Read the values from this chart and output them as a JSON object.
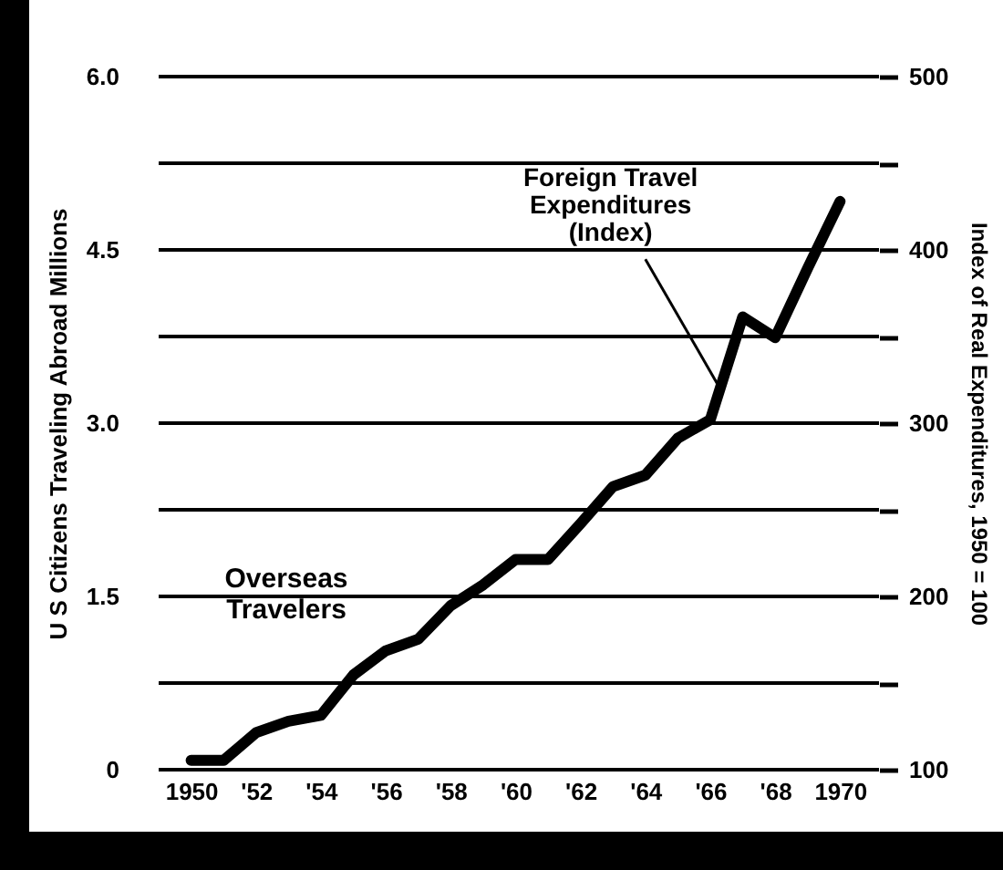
{
  "chart_data": {
    "type": "line",
    "ylabel": "U S Citizens Traveling Abroad Millions",
    "y2label": "Index of Real Expenditures, 1950 = 100",
    "x": [
      1950,
      1951,
      1952,
      1953,
      1954,
      1955,
      1956,
      1957,
      1958,
      1959,
      1960,
      1961,
      1962,
      1963,
      1964,
      1965,
      1966,
      1967,
      1968,
      1969,
      1970
    ],
    "series": [
      {
        "color": "#000000",
        "values": [
          0.08,
          0.08,
          0.32,
          0.42,
          0.47,
          0.82,
          1.03,
          1.13,
          1.42,
          1.6,
          1.82,
          1.82,
          2.13,
          2.45,
          2.55,
          2.87,
          3.03,
          3.92,
          3.74,
          4.34,
          4.92
        ]
      }
    ],
    "xlim": [
      1949,
      1971.2
    ],
    "xticks": [
      1950,
      {
        "value": 1952,
        "label": "'52"
      },
      {
        "value": 1954,
        "label": "'54"
      },
      {
        "value": 1956,
        "label": "'56"
      },
      {
        "value": 1958,
        "label": "'58"
      },
      {
        "value": 1960,
        "label": "'60"
      },
      {
        "value": 1962,
        "label": "'62"
      },
      {
        "value": 1964,
        "label": "'64"
      },
      {
        "value": 1966,
        "label": "'66"
      },
      {
        "value": 1968,
        "label": "'68"
      },
      1970
    ],
    "ylim": [
      0,
      6
    ],
    "yticks": [
      0,
      1.5,
      {
        "value": 3,
        "label": "3.0"
      },
      {
        "value": 4.5,
        "label": "4.5"
      },
      {
        "value": 6,
        "label": "6.0"
      }
    ],
    "y2lim": [
      100,
      500
    ],
    "y2ticks": [
      100,
      {
        "value": 150,
        "label": null
      },
      200,
      {
        "value": 250,
        "label": null
      },
      300,
      {
        "value": 350,
        "label": null
      },
      400,
      {
        "value": 450,
        "label": null
      },
      500
    ],
    "annotations": [
      "Overseas\nTravelers",
      {
        "text": "Foreign Travel\nExpenditures\n(Index)",
        "x": 1966.3,
        "y": 3.3
      }
    ],
    "grid": true,
    "line_style": "solid",
    "marker": "none"
  }
}
